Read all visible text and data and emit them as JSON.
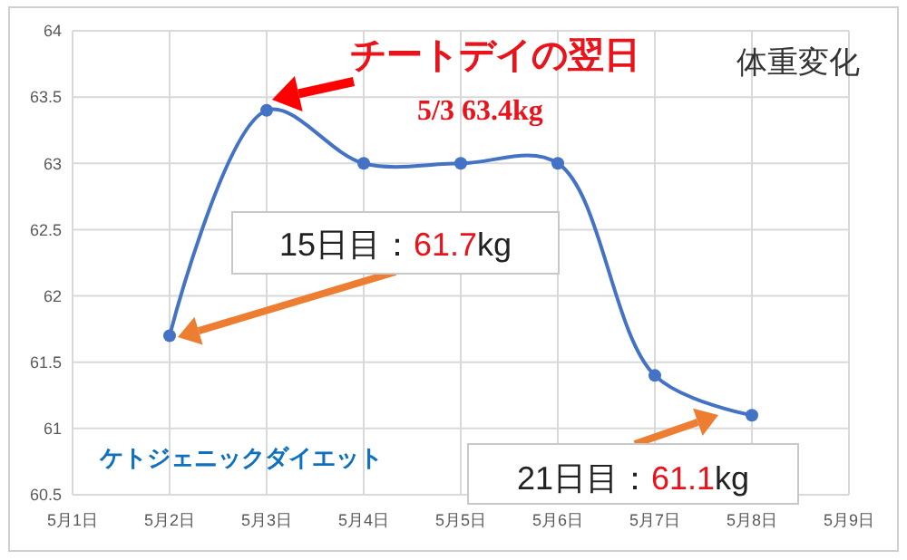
{
  "chart_data": {
    "type": "line",
    "title": "体重変化",
    "categories": [
      "5月1日",
      "5月2日",
      "5月3日",
      "5月4日",
      "5月5日",
      "5月6日",
      "5月7日",
      "5月8日",
      "5月9日"
    ],
    "series": [
      {
        "color": "#4472c4",
        "values": [
          null,
          61.7,
          63.4,
          63.0,
          63.0,
          63.0,
          61.4,
          61.1,
          null
        ]
      }
    ],
    "ylim": [
      60.5,
      64
    ],
    "yticks": [
      60.5,
      61,
      61.5,
      62,
      62.5,
      63,
      63.5,
      64
    ],
    "grid": true,
    "marker": "circle",
    "annotations": [
      "チートデイの翌日",
      "5/3 63.4kg",
      "15日目：61.7kg",
      "21日目：61.1kg",
      "ケトジェニックダイエット"
    ]
  }
}
